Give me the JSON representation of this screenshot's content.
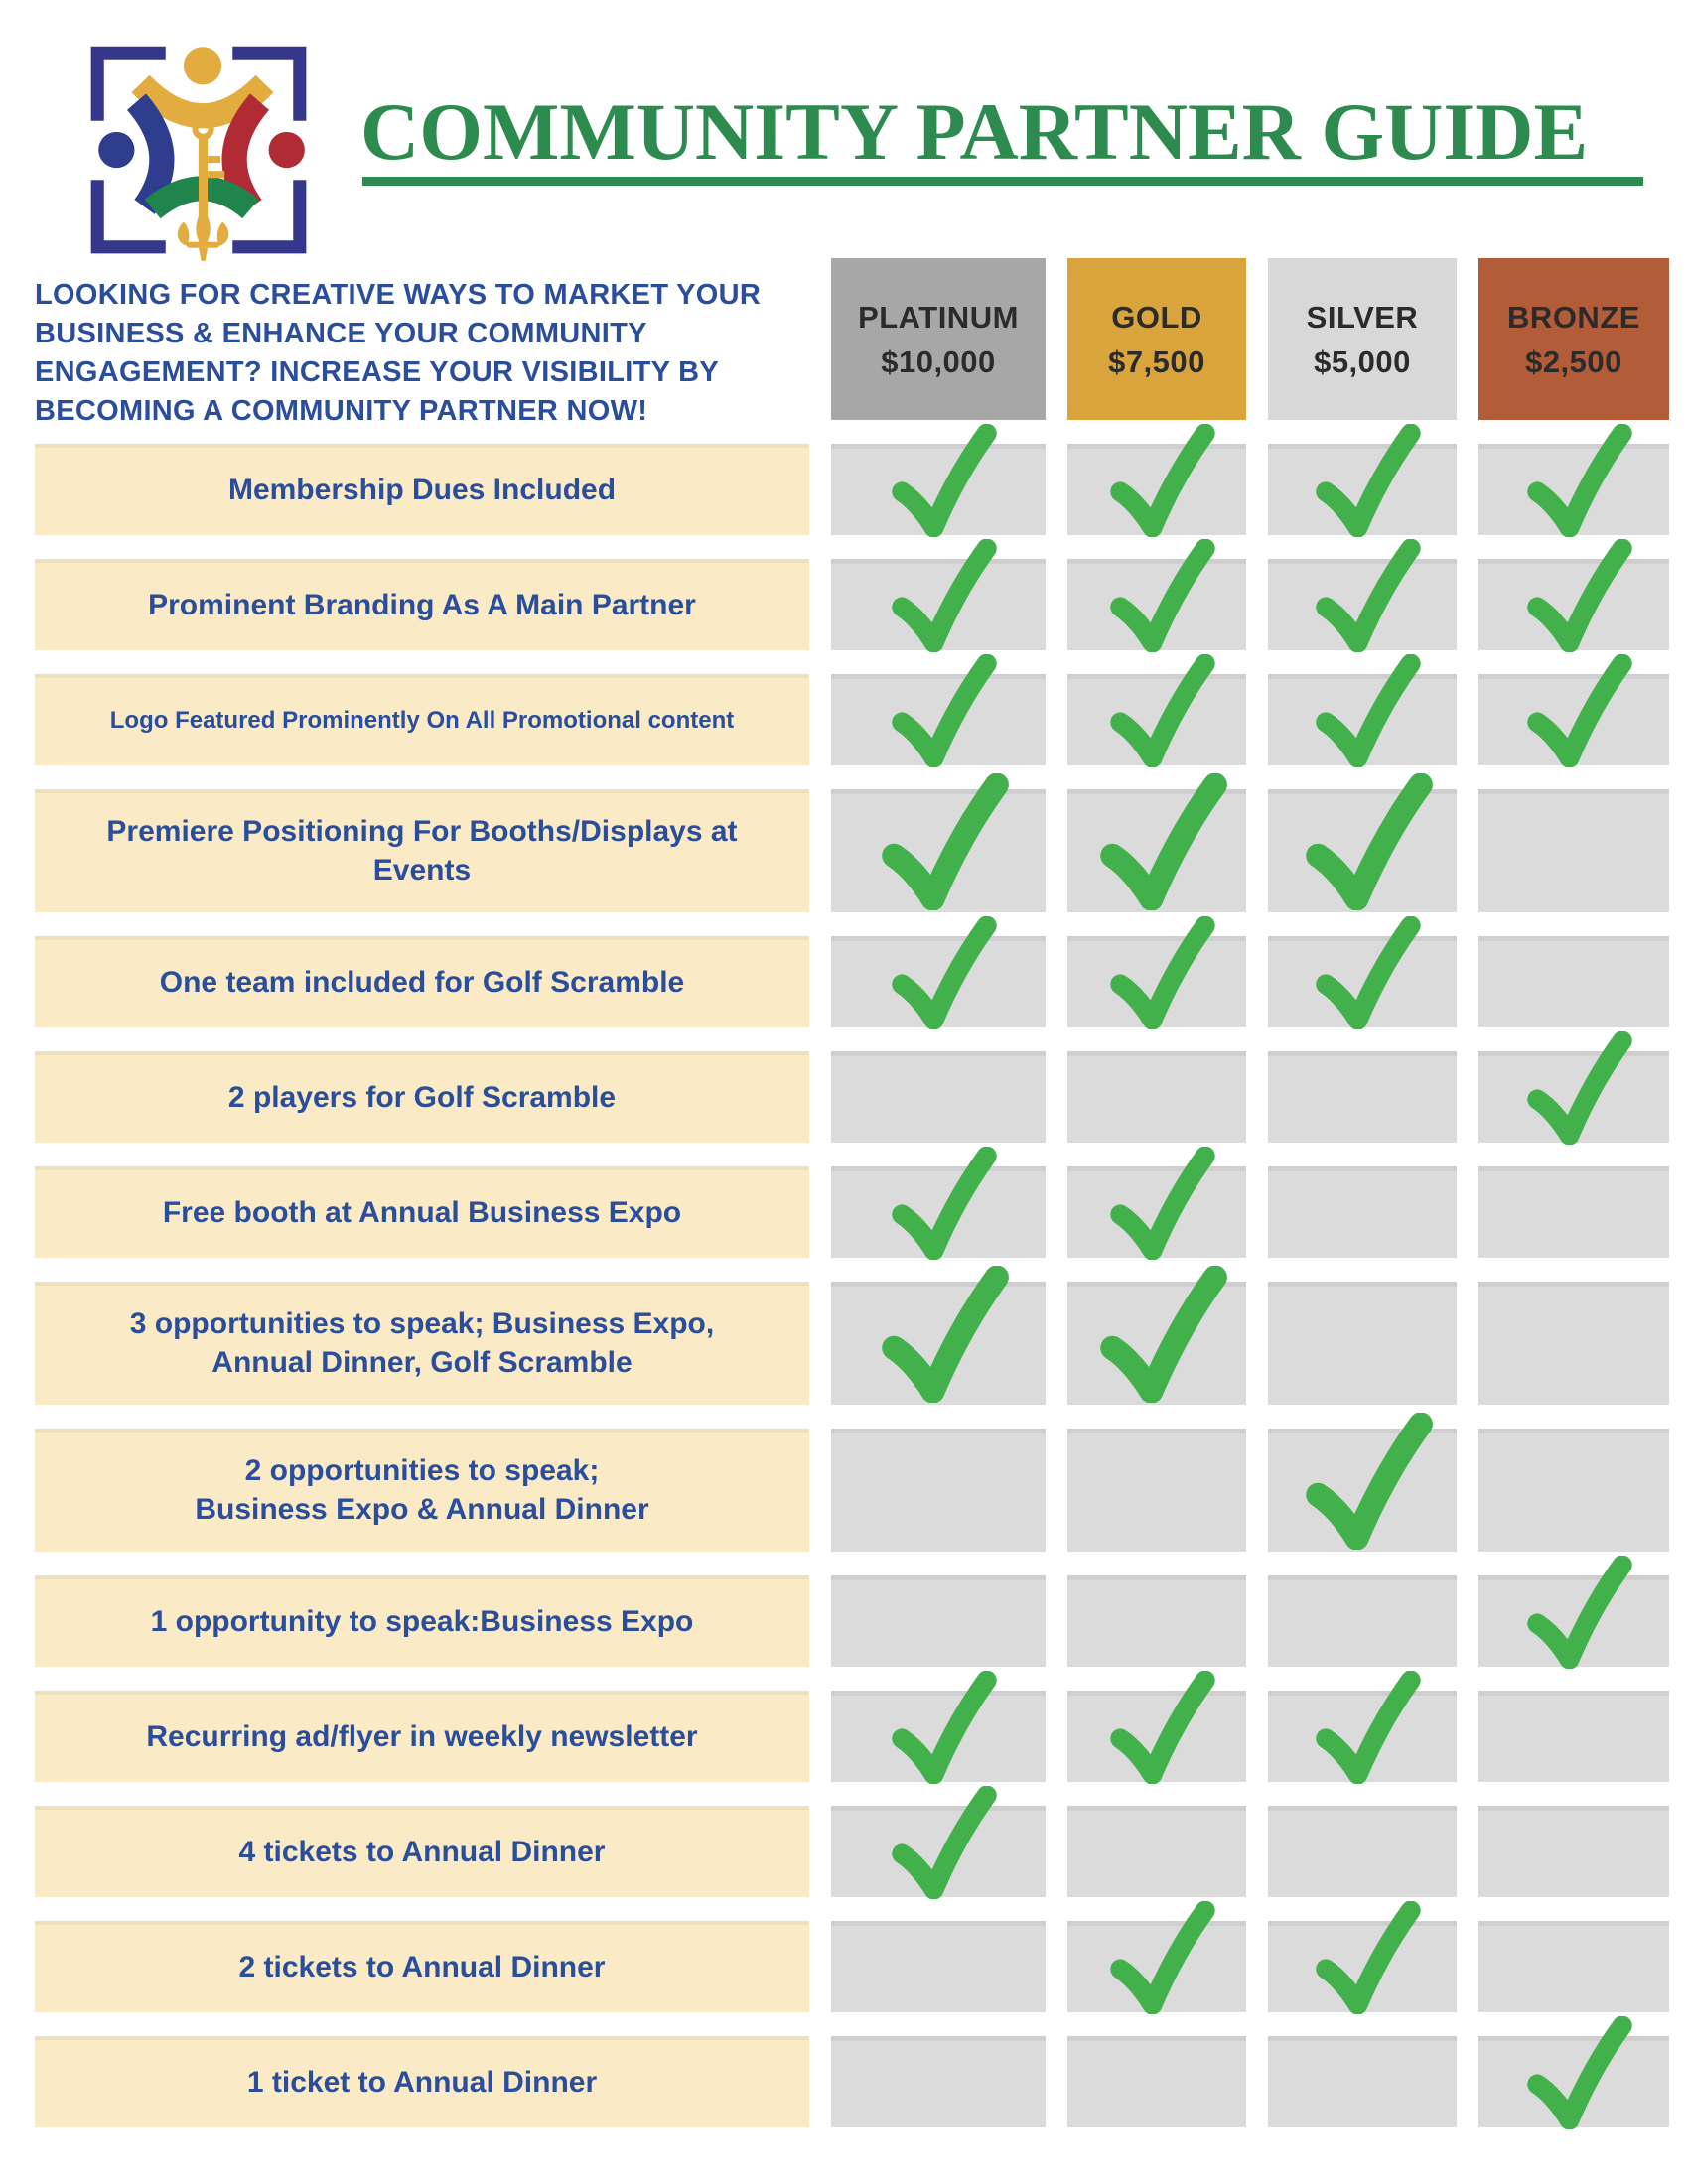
{
  "page": {
    "background": "#FFFFFF"
  },
  "logo": {
    "icon": "community-people-key-logo",
    "colors": {
      "frame_navy": "#34378A",
      "gold": "#E3AC3F",
      "red": "#B02B33",
      "green": "#20854C",
      "blue": "#2F3D8F"
    }
  },
  "header": {
    "title": "COMMUNITY PARTNER GUIDE",
    "title_color": "#2E8B4F"
  },
  "intro": {
    "color": "#2A4D9C",
    "lines": [
      "LOOKING FOR CREATIVE WAYS TO MARKET YOUR",
      "BUSINESS & ENHANCE YOUR COMMUNITY",
      "ENGAGEMENT? INCREASE YOUR VISIBILITY BY",
      "BECOMING A COMMUNITY PARTNER NOW!"
    ]
  },
  "tiers": [
    {
      "name": "PLATINUM",
      "price": "$10,000",
      "color": "#A7A7A7"
    },
    {
      "name": "GOLD",
      "price": "$7,500",
      "color": "#D9A43C"
    },
    {
      "name": "SILVER",
      "price": "$5,000",
      "color": "#D8D8D8"
    },
    {
      "name": "BRONZE",
      "price": "$2,500",
      "color": "#B25C38"
    }
  ],
  "styles": {
    "row_bg": "#FAEBC6",
    "cell_bg": "#DBDBDB",
    "check_color": "#43B14B",
    "label_color": "#2A4D9C",
    "header_text_color": "#2B2B2B"
  },
  "benefits": [
    {
      "label_line1": "Membership Dues Included",
      "label_line2": "",
      "checks": [
        true,
        true,
        true,
        true
      ]
    },
    {
      "label_line1": "Prominent Branding As A Main Partner",
      "label_line2": "",
      "checks": [
        true,
        true,
        true,
        true
      ]
    },
    {
      "label_line1": "Logo Featured Prominently On All Promotional content",
      "label_line2": "",
      "checks": [
        true,
        true,
        true,
        true
      ]
    },
    {
      "label_line1": "Premiere Positioning For Booths/Displays at",
      "label_line2": "Events",
      "checks": [
        true,
        true,
        true,
        false
      ]
    },
    {
      "label_line1": "One team included for Golf Scramble",
      "label_line2": "",
      "checks": [
        true,
        true,
        true,
        false
      ]
    },
    {
      "label_line1": "2 players for Golf Scramble",
      "label_line2": "",
      "checks": [
        false,
        false,
        false,
        true
      ]
    },
    {
      "label_line1": "Free booth at Annual Business Expo",
      "label_line2": "",
      "checks": [
        true,
        true,
        false,
        false
      ]
    },
    {
      "label_line1": "3 opportunities to speak; Business Expo,",
      "label_line2": "Annual Dinner, Golf Scramble",
      "checks": [
        true,
        true,
        false,
        false
      ]
    },
    {
      "label_line1": "2 opportunities to speak;",
      "label_line2": "Business Expo & Annual Dinner",
      "checks": [
        false,
        false,
        true,
        false
      ]
    },
    {
      "label_line1": "1 opportunity to speak:Business Expo",
      "label_line2": "",
      "checks": [
        false,
        false,
        false,
        true
      ]
    },
    {
      "label_line1": "Recurring ad/flyer in weekly newsletter",
      "label_line2": "",
      "checks": [
        true,
        true,
        true,
        false
      ]
    },
    {
      "label_line1": "4 tickets to Annual Dinner",
      "label_line2": "",
      "checks": [
        true,
        false,
        false,
        false
      ]
    },
    {
      "label_line1": "2 tickets to Annual Dinner",
      "label_line2": "",
      "checks": [
        false,
        true,
        true,
        false
      ]
    },
    {
      "label_line1": "1 ticket to Annual Dinner",
      "label_line2": "",
      "checks": [
        false,
        false,
        false,
        true
      ]
    }
  ]
}
